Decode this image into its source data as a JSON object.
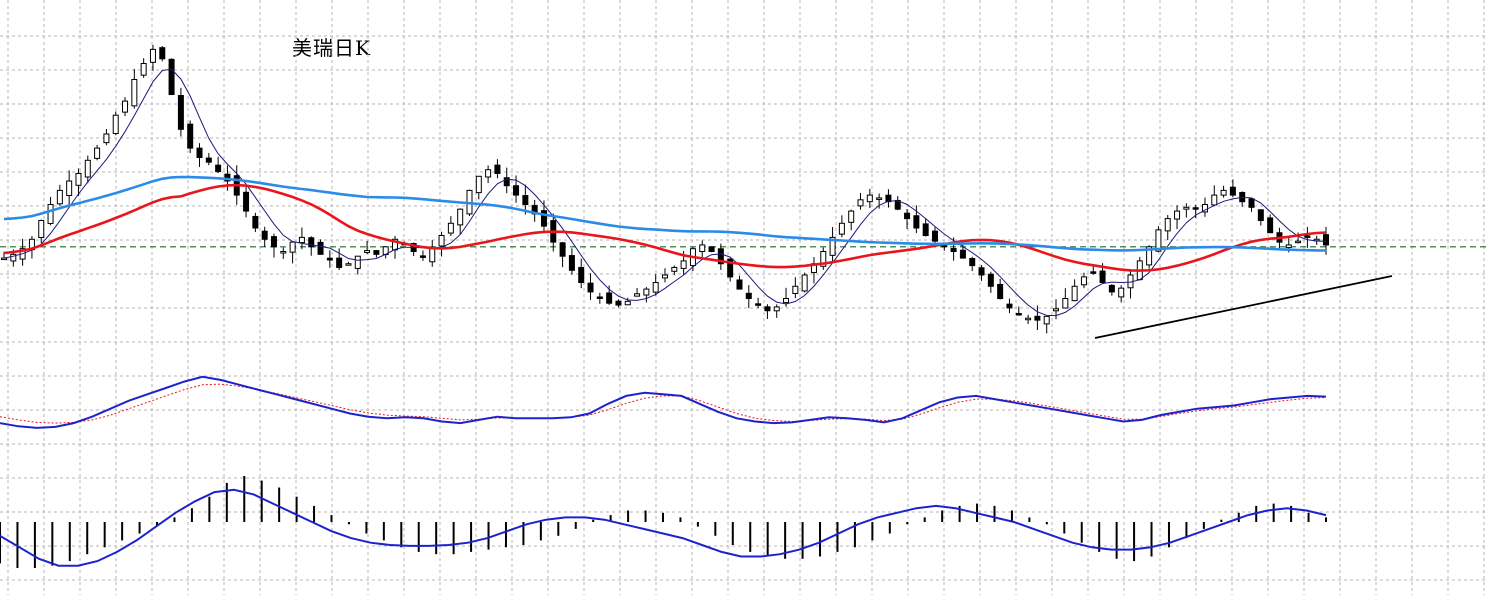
{
  "title": "美瑞日K",
  "colors": {
    "grid": "#b4b4b4",
    "candle": "#000000",
    "ma_fast": "#1a1a80",
    "ma_red": "#e8161b",
    "ma_blue": "#2b8be8",
    "reference_line": "#1f6b2a",
    "trendline": "#000000",
    "osc_main": "#1c23cc",
    "osc_signal": "#e8161b",
    "macd_hist": "#000000",
    "macd_line": "#1c23cc"
  },
  "chart_data": [
    {
      "type": "candlestick",
      "title": "美瑞日K",
      "series_closes": [
        0.88,
        0.92,
        0.98,
        1.08,
        1.28,
        1.45,
        1.6,
        1.7,
        1.78,
        1.92,
        2.05,
        2.2,
        2.4,
        2.55,
        2.78,
        2.95,
        3.1,
        3.0,
        2.62,
        2.25,
        2.05,
        1.95,
        1.9,
        1.8,
        1.7,
        1.55,
        1.38,
        1.2,
        1.08,
        1.0,
        0.95,
        1.05,
        1.1,
        1.0,
        0.92,
        0.86,
        0.78,
        0.82,
        0.9,
        0.96,
        0.92,
        1.0,
        1.08,
        1.02,
        0.95,
        0.9,
        0.98,
        1.12,
        1.25,
        1.4,
        1.6,
        1.75,
        1.82,
        1.78,
        1.65,
        1.55,
        1.45,
        1.35,
        1.22,
        1.05,
        0.9,
        0.75,
        0.62,
        0.52,
        0.45,
        0.4,
        0.38,
        0.42,
        0.5,
        0.55,
        0.62,
        0.7,
        0.78,
        0.85,
        0.98,
        1.02,
        0.95,
        0.82,
        0.68,
        0.55,
        0.45,
        0.38,
        0.32,
        0.36,
        0.45,
        0.58,
        0.7,
        0.82,
        0.95,
        1.1,
        1.25,
        1.38,
        1.5,
        1.55,
        1.52,
        1.48,
        1.4,
        1.3,
        1.2,
        1.12,
        1.06,
        1.0,
        0.95,
        0.88,
        0.8,
        0.7,
        0.58,
        0.45,
        0.35,
        0.28,
        0.24,
        0.22,
        0.26,
        0.34,
        0.45,
        0.58,
        0.68,
        0.72,
        0.62,
        0.52,
        0.56,
        0.7,
        0.85,
        1.0,
        1.18,
        1.3,
        1.38,
        1.42,
        1.4,
        1.45,
        1.55,
        1.6,
        1.55,
        1.48,
        1.42,
        1.28,
        1.15,
        1.05,
        1.02,
        1.06,
        1.1,
        1.08,
        1.02
      ],
      "reference_level": 1.0,
      "ylim": [
        0.2,
        3.2
      ]
    },
    {
      "type": "line",
      "series": [
        {
          "values": [
            -0.3,
            -0.4,
            -0.45,
            -0.42,
            -0.3,
            -0.1,
            0.15,
            0.4,
            0.6,
            0.8,
            1.0,
            1.15,
            1.05,
            0.9,
            0.75,
            0.6,
            0.45,
            0.3,
            0.15,
            0.0,
            -0.1,
            -0.15,
            -0.12,
            -0.15,
            -0.25,
            -0.3,
            -0.2,
            -0.1,
            -0.15,
            -0.15,
            -0.15,
            -0.12,
            0.0,
            0.3,
            0.55,
            0.65,
            0.6,
            0.55,
            0.3,
            0.05,
            -0.15,
            -0.25,
            -0.3,
            -0.28,
            -0.2,
            -0.12,
            -0.15,
            -0.2,
            -0.28,
            -0.15,
            0.1,
            0.35,
            0.5,
            0.55,
            0.45,
            0.35,
            0.25,
            0.15,
            0.05,
            -0.05,
            -0.15,
            -0.25,
            -0.2,
            -0.05,
            0.05,
            0.15,
            0.2,
            0.25,
            0.35,
            0.45,
            0.5,
            0.55,
            0.53
          ]
        },
        {
          "values": [
            -0.1,
            -0.2,
            -0.28,
            -0.3,
            -0.28,
            -0.2,
            -0.05,
            0.15,
            0.35,
            0.55,
            0.75,
            0.9,
            0.92,
            0.85,
            0.75,
            0.63,
            0.5,
            0.38,
            0.25,
            0.12,
            0.02,
            -0.05,
            -0.08,
            -0.1,
            -0.15,
            -0.2,
            -0.18,
            -0.14,
            -0.14,
            -0.14,
            -0.14,
            -0.12,
            -0.05,
            0.12,
            0.32,
            0.48,
            0.55,
            0.55,
            0.4,
            0.2,
            0.0,
            -0.15,
            -0.22,
            -0.25,
            -0.22,
            -0.18,
            -0.16,
            -0.18,
            -0.22,
            -0.18,
            -0.02,
            0.18,
            0.35,
            0.45,
            0.45,
            0.4,
            0.32,
            0.22,
            0.12,
            0.02,
            -0.08,
            -0.18,
            -0.18,
            -0.1,
            0.0,
            0.08,
            0.15,
            0.2,
            0.28,
            0.35,
            0.42,
            0.48,
            0.5
          ]
        }
      ]
    },
    {
      "type": "bar",
      "series": [
        {
          "values": [
            -0.9,
            -1.0,
            -1.0,
            -0.95,
            -0.85,
            -0.7,
            -0.55,
            -0.4,
            -0.25,
            -0.1,
            0.1,
            0.3,
            0.55,
            0.85,
            1.0,
            0.9,
            0.75,
            0.55,
            0.35,
            0.15,
            -0.05,
            -0.25,
            -0.4,
            -0.55,
            -0.65,
            -0.7,
            -0.7,
            -0.65,
            -0.6,
            -0.55,
            -0.5,
            -0.4,
            -0.3,
            -0.15,
            0.05,
            0.15,
            0.25,
            0.25,
            0.2,
            0.1,
            -0.1,
            -0.3,
            -0.5,
            -0.65,
            -0.75,
            -0.8,
            -0.8,
            -0.75,
            -0.65,
            -0.55,
            -0.4,
            -0.25,
            -0.05,
            0.1,
            0.25,
            0.35,
            0.4,
            0.35,
            0.25,
            0.1,
            -0.05,
            -0.25,
            -0.45,
            -0.65,
            -0.8,
            -0.85,
            -0.75,
            -0.55,
            -0.35,
            -0.15,
            0.05,
            0.2,
            0.35,
            0.4,
            0.35,
            0.2,
            0.1
          ]
        },
        {
          "values": [
            -0.3,
            -0.55,
            -0.8,
            -0.95,
            -0.95,
            -0.85,
            -0.65,
            -0.4,
            -0.1,
            0.2,
            0.45,
            0.65,
            0.7,
            0.6,
            0.4,
            0.2,
            0.0,
            -0.2,
            -0.35,
            -0.45,
            -0.5,
            -0.52,
            -0.52,
            -0.5,
            -0.45,
            -0.35,
            -0.2,
            -0.05,
            0.05,
            0.1,
            0.1,
            0.05,
            -0.05,
            -0.15,
            -0.25,
            -0.35,
            -0.5,
            -0.65,
            -0.75,
            -0.75,
            -0.7,
            -0.6,
            -0.45,
            -0.25,
            -0.05,
            0.1,
            0.2,
            0.3,
            0.35,
            0.3,
            0.2,
            0.1,
            0.0,
            -0.15,
            -0.3,
            -0.45,
            -0.55,
            -0.6,
            -0.6,
            -0.55,
            -0.45,
            -0.3,
            -0.15,
            0.0,
            0.15,
            0.25,
            0.3,
            0.25,
            0.15
          ]
        }
      ]
    }
  ]
}
